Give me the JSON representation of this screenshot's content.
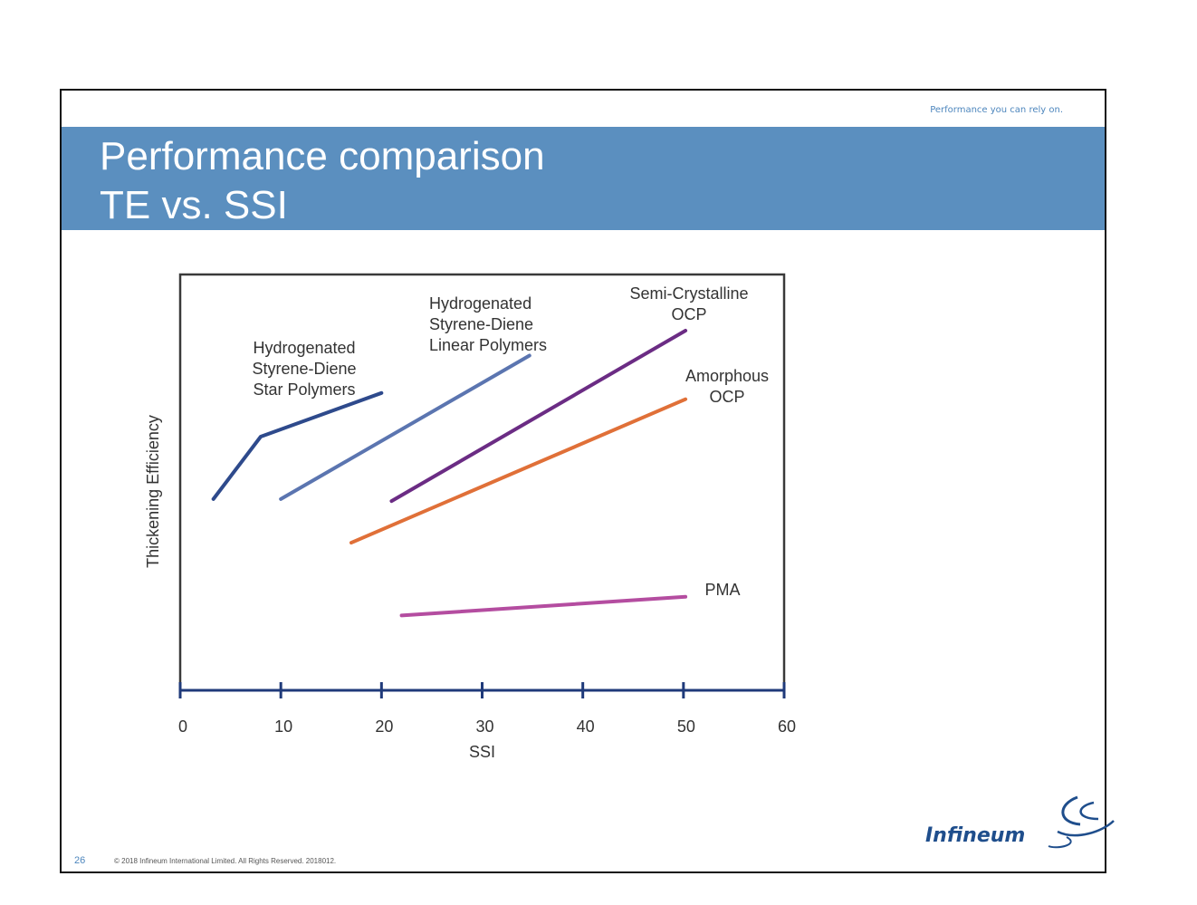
{
  "header": {
    "tagline": "Performance you can rely on.",
    "title_line1": "Performance comparison",
    "title_line2": "TE vs. SSI"
  },
  "footer": {
    "page_number": "26",
    "copyright": "© 2018 Infineum International Limited. All Rights Reserved. 2018012."
  },
  "logo": {
    "text": "Infineum"
  },
  "chart_data": {
    "type": "line",
    "xlabel": "SSI",
    "ylabel": "Thickening Efficiency",
    "xlim": [
      0,
      60
    ],
    "xticks": [
      0,
      10,
      20,
      30,
      40,
      50,
      60
    ],
    "ylim": [
      0,
      100
    ],
    "yticks_shown": false,
    "grid": false,
    "series": [
      {
        "label": [
          "Hydrogenated",
          "Styrene-Diene",
          "Star Polymers"
        ],
        "color": "#2e4a8c",
        "points": [
          [
            3.3,
            46
          ],
          [
            8,
            61
          ],
          [
            20,
            71.5
          ]
        ]
      },
      {
        "label": [
          "Hydrogenated",
          "Styrene-Diene",
          "Linear Polymers"
        ],
        "color": "#5b75b0",
        "points": [
          [
            10,
            46
          ],
          [
            34.7,
            80.5
          ]
        ]
      },
      {
        "label": [
          "Semi-Crystalline",
          "OCP"
        ],
        "color": "#6b2c84",
        "points": [
          [
            21,
            45.5
          ],
          [
            50.2,
            86.5
          ]
        ]
      },
      {
        "label": [
          "Amorphous",
          "OCP"
        ],
        "color": "#e07038",
        "points": [
          [
            17,
            35.5
          ],
          [
            50.2,
            70
          ]
        ]
      },
      {
        "label": [
          "PMA"
        ],
        "color": "#b44da0",
        "points": [
          [
            22,
            18
          ],
          [
            50.2,
            22.5
          ]
        ]
      }
    ]
  }
}
